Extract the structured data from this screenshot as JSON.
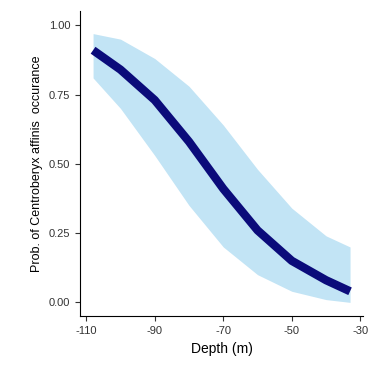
{
  "chart_data": {
    "type": "line",
    "x_label": "Depth (m)",
    "y_label": "Prob. of Centroberyx affinis  occurance",
    "x": [
      -108,
      -100,
      -90,
      -80,
      -70,
      -60,
      -50,
      -40,
      -33
    ],
    "values": [
      0.91,
      0.84,
      0.73,
      0.58,
      0.41,
      0.26,
      0.15,
      0.08,
      0.04
    ],
    "lower": [
      0.81,
      0.7,
      0.53,
      0.35,
      0.2,
      0.1,
      0.04,
      0.01,
      0.0
    ],
    "upper": [
      0.97,
      0.95,
      0.88,
      0.78,
      0.64,
      0.48,
      0.34,
      0.24,
      0.2
    ],
    "color": "#0b0b7a",
    "band_color": "#c2e4f5",
    "xlim": [
      -111.75,
      -29.25
    ],
    "xticks": [
      -110,
      -90,
      -70,
      -50,
      -30
    ],
    "ylim": [
      -0.05,
      1.05
    ],
    "yticks": [
      {
        "value": 0,
        "label": "0.00"
      },
      {
        "value": 0.25,
        "label": "0.25"
      },
      {
        "value": 0.5,
        "label": "0.50"
      },
      {
        "value": 0.75,
        "label": "0.75"
      },
      {
        "value": 1,
        "label": "1.00"
      }
    ],
    "grid": false
  }
}
